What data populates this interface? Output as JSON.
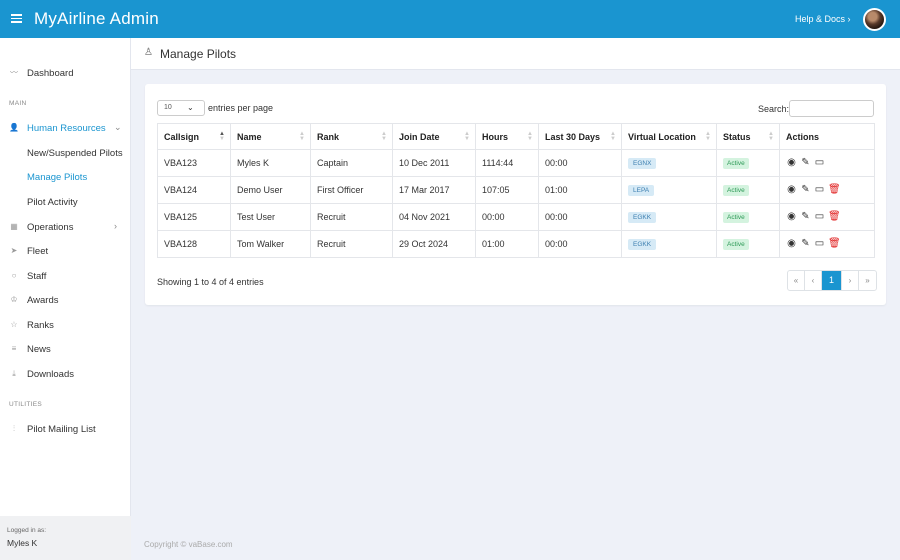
{
  "app": {
    "title": "MyAirline Admin",
    "help_label": "Help & Docs ›"
  },
  "sidebar": {
    "dashboard": "Dashboard",
    "section_main": "MAIN",
    "hr": "Human Resources",
    "hr_children": [
      "New/Suspended Pilots",
      "Manage Pilots",
      "Pilot Activity"
    ],
    "operations": "Operations",
    "fleet": "Fleet",
    "staff": "Staff",
    "awards": "Awards",
    "ranks": "Ranks",
    "news": "News",
    "downloads": "Downloads",
    "section_utilities": "UTILITIES",
    "mailing": "Pilot Mailing List",
    "logged_in_label": "Logged in as:",
    "logged_in_user": "Myles K"
  },
  "page": {
    "title": "Manage Pilots"
  },
  "table_controls": {
    "page_length": "10",
    "length_text": "entries per page",
    "search_label": "Search:"
  },
  "columns": [
    "Callsign",
    "Name",
    "Rank",
    "Join Date",
    "Hours",
    "Last 30 Days",
    "Virtual Location",
    "Status",
    "Actions"
  ],
  "rows": [
    {
      "callsign": "VBA123",
      "name": "Myles K",
      "rank": "Captain",
      "join": "10 Dec 2011",
      "hours": "1114:44",
      "last30": "00:00",
      "last30_red": true,
      "location": "EGNX",
      "status": "Active",
      "deletable": false
    },
    {
      "callsign": "VBA124",
      "name": "Demo User",
      "rank": "First Officer",
      "join": "17 Mar 2017",
      "hours": "107:05",
      "last30": "01:00",
      "last30_red": false,
      "location": "LEPA",
      "status": "Active",
      "deletable": true
    },
    {
      "callsign": "VBA125",
      "name": "Test User",
      "rank": "Recruit",
      "join": "04 Nov 2021",
      "hours": "00:00",
      "last30": "00:00",
      "last30_red": true,
      "location": "EGKK",
      "status": "Active",
      "deletable": true
    },
    {
      "callsign": "VBA128",
      "name": "Tom Walker",
      "rank": "Recruit",
      "join": "29 Oct 2024",
      "hours": "01:00",
      "last30": "00:00",
      "last30_red": true,
      "location": "EGKK",
      "status": "Active",
      "deletable": true
    }
  ],
  "footer": {
    "info": "Showing 1 to 4 of 4 entries",
    "pager": [
      "«",
      "‹",
      "1",
      "›",
      "»"
    ],
    "current_page": "1"
  },
  "copyright": "Copyright © vaBase.com",
  "colors": {
    "accent": "#1a95d0",
    "danger": "#e02020",
    "status_active": "#2e9a57"
  },
  "icons": {
    "view": "eye-icon",
    "edit": "edit-icon",
    "card": "card-icon",
    "delete": "trash-icon"
  }
}
